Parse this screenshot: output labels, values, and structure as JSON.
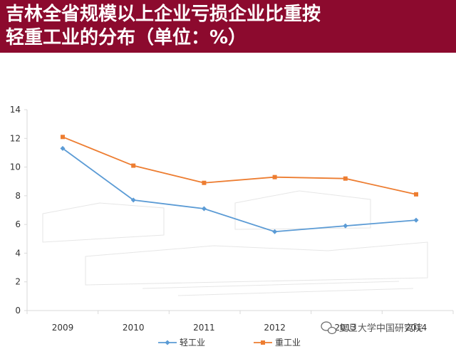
{
  "header": {
    "title": "吉林全省规模以上企业亏损企业比重按\n轻重工业的分布（单位：%）"
  },
  "watermark": {
    "text": "复旦大学中国研究院",
    "icon": "wechat-icon"
  },
  "colors": {
    "header_bg": "#8c0a2e",
    "light_industry": "#5b9bd5",
    "heavy_industry": "#ed7d31",
    "axis": "#d9d9d9"
  },
  "chart_data": {
    "type": "line",
    "title": "吉林全省规模以上企业亏损企业比重按轻重工业的分布（单位：%）",
    "categories": [
      "2009",
      "2010",
      "2011",
      "2012",
      "2013",
      "2014"
    ],
    "series": [
      {
        "name": "轻工业",
        "marker": "diamond",
        "color": "#5b9bd5",
        "values": [
          11.3,
          7.7,
          7.1,
          5.5,
          5.9,
          6.3
        ]
      },
      {
        "name": "重工业",
        "marker": "square",
        "color": "#ed7d31",
        "values": [
          12.1,
          10.1,
          8.9,
          9.3,
          9.2,
          8.1
        ]
      }
    ],
    "ylim": [
      0,
      14
    ],
    "yticks": [
      0,
      2,
      4,
      6,
      8,
      10,
      12,
      14
    ],
    "xlabel": "",
    "ylabel": "",
    "legend": "bottom",
    "grid": false
  }
}
